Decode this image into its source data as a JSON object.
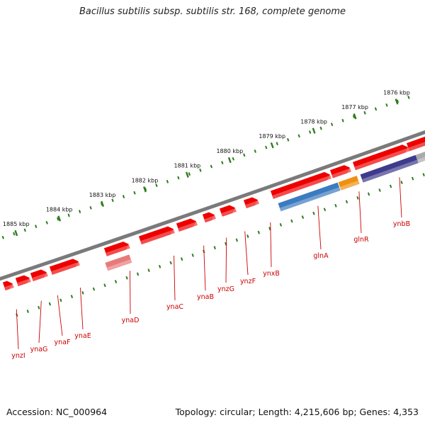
{
  "title": "Bacillus subtilis subsp. subtilis str. 168, complete genome",
  "footer": {
    "accession": "Accession: NC_000964",
    "summary": "Topology: circular; Length: 4,215,606 bp; Genes: 4,353"
  },
  "scale_labels": [
    "1885 kbp",
    "1884 kbp",
    "1883 kbp",
    "1882 kbp",
    "1881 kbp",
    "1880 kbp",
    "1879 kbp",
    "1878 kbp",
    "1877 kbp",
    "1876 kbp"
  ],
  "colors": {
    "backbone": "#7a7a7a",
    "ticks": "#2e7d1f",
    "gene_default": "#ee0000",
    "label_text": "#cc0000"
  },
  "genes": [
    {
      "name": "ynzI",
      "feature_color": "#ee0000",
      "strand": "reverse"
    },
    {
      "name": "ynaG",
      "feature_color": "#ee0000",
      "strand": "reverse"
    },
    {
      "name": "ynaF",
      "feature_color": "#ee0000",
      "strand": "reverse"
    },
    {
      "name": "ynaE",
      "feature_color": "#ee0000",
      "strand": "forward"
    },
    {
      "name": "ynaD",
      "feature_color": "#e87a7a",
      "strand": "forward"
    },
    {
      "name": "ynaC",
      "feature_color": "#ee0000",
      "strand": "forward"
    },
    {
      "name": "ynaB",
      "feature_color": "#ee0000",
      "strand": "forward"
    },
    {
      "name": "ynzG",
      "feature_color": "#ee0000",
      "strand": "reverse"
    },
    {
      "name": "ynzF",
      "feature_color": "#ee0000",
      "strand": "reverse"
    },
    {
      "name": "ynxB",
      "feature_color": "#ee0000",
      "strand": "reverse"
    },
    {
      "name": "glnA",
      "feature_color": "#3b7bbf",
      "strand": "forward"
    },
    {
      "name": "glnR",
      "feature_color": "#f09010",
      "strand": "forward"
    },
    {
      "name": "ynbB",
      "feature_color": "#3e3a8c",
      "strand": "forward"
    }
  ]
}
